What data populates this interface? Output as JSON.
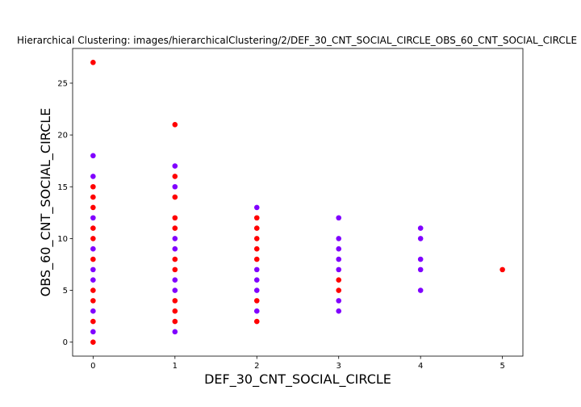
{
  "chart_data": {
    "type": "scatter",
    "title": "Hierarchical Clustering: images/hierarchicalClustering/2/DEF_30_CNT_SOCIAL_CIRCLE_OBS_60_CNT_SOCIAL_CIRCLE",
    "xlabel": "DEF_30_CNT_SOCIAL_CIRCLE",
    "ylabel": "OBS_60_CNT_SOCIAL_CIRCLE",
    "xlim": [
      -0.25,
      5.25
    ],
    "ylim": [
      -1.35,
      28.35
    ],
    "x_ticks": [
      0,
      1,
      2,
      3,
      4,
      5
    ],
    "y_ticks": [
      0,
      5,
      10,
      15,
      20,
      25
    ],
    "grid": false,
    "legend": "none",
    "series": [
      {
        "name": "cluster-purple",
        "color": "#8000ff",
        "points": [
          [
            0,
            18
          ],
          [
            0,
            16
          ],
          [
            0,
            12
          ],
          [
            0,
            9
          ],
          [
            0,
            7
          ],
          [
            0,
            6
          ],
          [
            0,
            3
          ],
          [
            0,
            1
          ],
          [
            1,
            17
          ],
          [
            1,
            15
          ],
          [
            1,
            10
          ],
          [
            1,
            9
          ],
          [
            1,
            6
          ],
          [
            1,
            5
          ],
          [
            1,
            1
          ],
          [
            2,
            13
          ],
          [
            2,
            7
          ],
          [
            2,
            6
          ],
          [
            2,
            5
          ],
          [
            2,
            3
          ],
          [
            3,
            12
          ],
          [
            3,
            10
          ],
          [
            3,
            9
          ],
          [
            3,
            8
          ],
          [
            3,
            7
          ],
          [
            3,
            4
          ],
          [
            3,
            3
          ],
          [
            4,
            11
          ],
          [
            4,
            10
          ],
          [
            4,
            8
          ],
          [
            4,
            7
          ],
          [
            4,
            5
          ]
        ]
      },
      {
        "name": "cluster-red",
        "color": "#ff0000",
        "points": [
          [
            0,
            27
          ],
          [
            0,
            15
          ],
          [
            0,
            14
          ],
          [
            0,
            13
          ],
          [
            0,
            11
          ],
          [
            0,
            10
          ],
          [
            0,
            8
          ],
          [
            0,
            5
          ],
          [
            0,
            4
          ],
          [
            0,
            2
          ],
          [
            0,
            0
          ],
          [
            1,
            21
          ],
          [
            1,
            16
          ],
          [
            1,
            14
          ],
          [
            1,
            12
          ],
          [
            1,
            11
          ],
          [
            1,
            8
          ],
          [
            1,
            7
          ],
          [
            1,
            4
          ],
          [
            1,
            3
          ],
          [
            1,
            2
          ],
          [
            2,
            12
          ],
          [
            2,
            11
          ],
          [
            2,
            10
          ],
          [
            2,
            9
          ],
          [
            2,
            8
          ],
          [
            2,
            4
          ],
          [
            2,
            2
          ],
          [
            3,
            6
          ],
          [
            3,
            5
          ],
          [
            5,
            7
          ]
        ]
      }
    ]
  }
}
